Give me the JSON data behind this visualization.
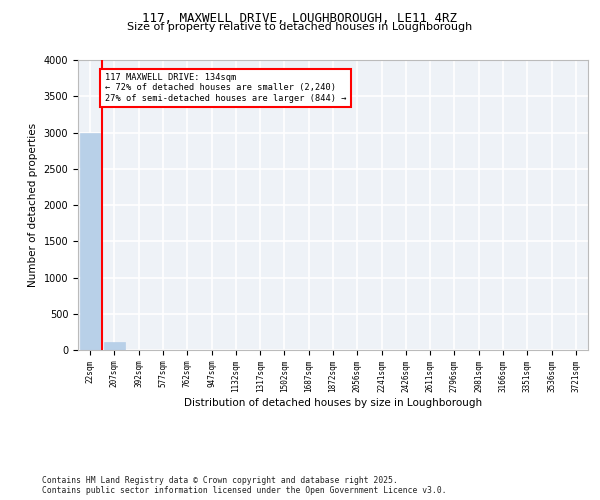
{
  "title_line1": "117, MAXWELL DRIVE, LOUGHBOROUGH, LE11 4RZ",
  "title_line2": "Size of property relative to detached houses in Loughborough",
  "xlabel": "Distribution of detached houses by size in Loughborough",
  "ylabel": "Number of detached properties",
  "bar_labels": [
    "22sqm",
    "207sqm",
    "392sqm",
    "577sqm",
    "762sqm",
    "947sqm",
    "1132sqm",
    "1317sqm",
    "1502sqm",
    "1687sqm",
    "1872sqm",
    "2056sqm",
    "2241sqm",
    "2426sqm",
    "2611sqm",
    "2796sqm",
    "2981sqm",
    "3166sqm",
    "3351sqm",
    "3536sqm",
    "3721sqm"
  ],
  "bar_heights": [
    3000,
    110,
    0,
    0,
    0,
    0,
    0,
    0,
    0,
    0,
    0,
    0,
    0,
    0,
    0,
    0,
    0,
    0,
    0,
    0,
    0
  ],
  "bar_color": "#b8d0e8",
  "bar_edge_color": "#b8d0e8",
  "vline_color": "red",
  "annotation_title": "117 MAXWELL DRIVE: 134sqm",
  "annotation_line1": "← 72% of detached houses are smaller (2,240)",
  "annotation_line2": "27% of semi-detached houses are larger (844) →",
  "annotation_box_color": "white",
  "annotation_box_edge": "red",
  "ylim": [
    0,
    4000
  ],
  "yticks": [
    0,
    500,
    1000,
    1500,
    2000,
    2500,
    3000,
    3500,
    4000
  ],
  "bg_color": "#eef2f7",
  "grid_color": "#ffffff",
  "footer_line1": "Contains HM Land Registry data © Crown copyright and database right 2025.",
  "footer_line2": "Contains public sector information licensed under the Open Government Licence v3.0."
}
